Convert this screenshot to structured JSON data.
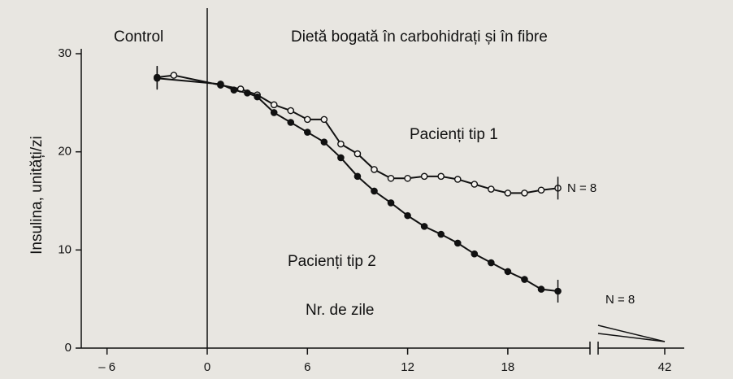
{
  "chart_data": {
    "type": "line",
    "annotations": [
      "Control",
      "Dietă bogată în carbohidrați și în fibre",
      "Pacienți tip 1",
      "Pacienți tip 2",
      "N = 8",
      "N = 8"
    ],
    "x_label": "Nr. de zile",
    "y_label": "Insulina, unități/zi",
    "xlim": [
      -8.5,
      43
    ],
    "ylim": [
      0,
      30.5
    ],
    "xticks": [
      {
        "value": -6,
        "label": "– 6"
      },
      0,
      6,
      12,
      18,
      42
    ],
    "yticks": [
      0,
      10,
      20,
      30
    ],
    "series": [
      {
        "name": "Pacienți tip 1",
        "color": "#111111",
        "marker": "open",
        "x": [
          -3,
          -2,
          0.8,
          2,
          3,
          4,
          5,
          6,
          7,
          8,
          9,
          10,
          11,
          12,
          13,
          14,
          15,
          16,
          17,
          18,
          19,
          20,
          21
        ],
        "values": [
          27.6,
          27.8,
          26.8,
          26.4,
          25.8,
          24.8,
          24.2,
          23.3,
          23.3,
          20.8,
          19.8,
          18.2,
          17.3,
          17.3,
          17.5,
          17.5,
          17.2,
          16.7,
          16.2,
          15.8,
          15.8,
          16.1,
          16.3
        ]
      },
      {
        "name": "Pacienți tip 2",
        "color": "#111111",
        "marker": "filled",
        "x": [
          -3,
          0.8,
          1.6,
          2.4,
          3,
          4,
          5,
          6,
          7,
          8,
          9,
          10,
          11,
          12,
          13,
          14,
          15,
          16,
          17,
          18,
          19,
          20,
          21
        ],
        "values": [
          27.5,
          26.9,
          26.3,
          26.0,
          25.6,
          24.0,
          23.0,
          22.0,
          21.0,
          19.4,
          17.5,
          16.0,
          14.8,
          13.5,
          12.4,
          11.6,
          10.7,
          9.6,
          8.7,
          7.8,
          7.0,
          6.0,
          5.8
        ]
      }
    ]
  }
}
